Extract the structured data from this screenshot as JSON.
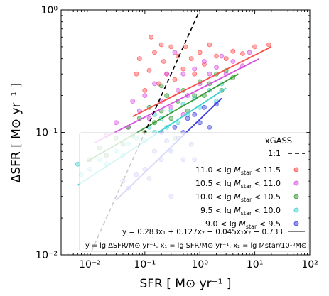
{
  "chart_data": {
    "type": "scatter",
    "xscale": "log",
    "yscale": "log",
    "xlim": [
      0.003,
      100
    ],
    "ylim": [
      0.01,
      1
    ],
    "xlabel": "SFR [ M⊙ yr⁻¹ ]",
    "ylabel": "ΔSFR [ M⊙ yr⁻¹ ]",
    "x_tick_labels": [
      "10⁻²",
      "10⁻¹",
      "10⁰",
      "10¹",
      "10²"
    ],
    "y_tick_labels": [
      "10⁻²",
      "10⁻¹",
      "10⁰"
    ],
    "x_tick_values": [
      0.01,
      0.1,
      1,
      10,
      100
    ],
    "y_tick_values": [
      0.01,
      0.1,
      1
    ],
    "legend": {
      "title": "xGASS",
      "placement": "lower-right",
      "one_to_one_label": "1:1",
      "fit_label": "y = 0.283x₁ + 0.127x₂ − 0.045x₁x₂ − 0.733",
      "note": "y = lg ΔSFR/M⊙ yr⁻¹, x₁ = lg SFR/M⊙ yr⁻¹, x₂ = lg Mstar/10¹⁰M⊙"
    },
    "reference_line": {
      "name": "1:1",
      "color": "#000000",
      "x": [
        0.0095,
        1.02
      ],
      "y": [
        0.0095,
        1.02
      ]
    },
    "series": [
      {
        "name": "11.0 < lg Mstar < 11.5",
        "label_parts": [
          "11.0 < lg",
          "star",
          " < 11.5"
        ],
        "color": "#ff4a4a",
        "fit_x": [
          0.06,
          20
        ],
        "fit_y": [
          0.135,
          0.5
        ],
        "points": [
          [
            0.07,
            0.3
          ],
          [
            0.08,
            0.4
          ],
          [
            0.1,
            0.22
          ],
          [
            0.12,
            0.32
          ],
          [
            0.15,
            0.45
          ],
          [
            0.18,
            0.25
          ],
          [
            0.22,
            0.38
          ],
          [
            0.25,
            0.3
          ],
          [
            0.3,
            0.5
          ],
          [
            0.35,
            0.27
          ],
          [
            0.4,
            0.42
          ],
          [
            0.5,
            0.33
          ],
          [
            0.55,
            0.5
          ],
          [
            0.7,
            0.4
          ],
          [
            0.8,
            0.3
          ],
          [
            1.0,
            0.45
          ],
          [
            1.2,
            0.36
          ],
          [
            1.5,
            0.52
          ],
          [
            2.0,
            0.42
          ],
          [
            3.0,
            0.4
          ],
          [
            4.0,
            0.46
          ],
          [
            6.0,
            0.44
          ],
          [
            10.0,
            0.5
          ],
          [
            18.0,
            0.52
          ],
          [
            0.13,
            0.6
          ],
          [
            0.2,
            0.52
          ]
        ]
      },
      {
        "name": "10.5 < lg Mstar < 11.0",
        "label_parts": [
          "10.5 < lg",
          "star",
          " < 11.0"
        ],
        "color": "#d64fe0",
        "fit_x": [
          0.012,
          12
        ],
        "fit_y": [
          0.082,
          0.4
        ],
        "points": [
          [
            0.02,
            0.095
          ],
          [
            0.03,
            0.12
          ],
          [
            0.05,
            0.11
          ],
          [
            0.06,
            0.18
          ],
          [
            0.08,
            0.15
          ],
          [
            0.1,
            0.2
          ],
          [
            0.12,
            0.13
          ],
          [
            0.15,
            0.25
          ],
          [
            0.2,
            0.18
          ],
          [
            0.25,
            0.3
          ],
          [
            0.3,
            0.16
          ],
          [
            0.4,
            0.22
          ],
          [
            0.5,
            0.3
          ],
          [
            0.6,
            0.2
          ],
          [
            0.8,
            0.33
          ],
          [
            1.0,
            0.25
          ],
          [
            1.2,
            0.38
          ],
          [
            1.5,
            0.3
          ],
          [
            2.0,
            0.34
          ],
          [
            2.5,
            0.42
          ],
          [
            3.0,
            0.3
          ],
          [
            4.0,
            0.38
          ],
          [
            6.0,
            0.35
          ],
          [
            8.0,
            0.45
          ],
          [
            0.35,
            0.45
          ],
          [
            0.5,
            0.14
          ]
        ]
      },
      {
        "name": "10.0 < lg Mstar < 10.5",
        "label_parts": [
          "10.0 < lg",
          "star",
          " < 10.5"
        ],
        "color": "#3a9a3a",
        "fit_x": [
          0.009,
          5
        ],
        "fit_y": [
          0.058,
          0.3
        ],
        "points": [
          [
            0.01,
            0.06
          ],
          [
            0.015,
            0.075
          ],
          [
            0.02,
            0.065
          ],
          [
            0.03,
            0.09
          ],
          [
            0.04,
            0.08
          ],
          [
            0.05,
            0.11
          ],
          [
            0.06,
            0.095
          ],
          [
            0.08,
            0.13
          ],
          [
            0.1,
            0.1
          ],
          [
            0.12,
            0.16
          ],
          [
            0.15,
            0.12
          ],
          [
            0.2,
            0.15
          ],
          [
            0.25,
            0.2
          ],
          [
            0.3,
            0.13
          ],
          [
            0.4,
            0.18
          ],
          [
            0.5,
            0.22
          ],
          [
            0.6,
            0.15
          ],
          [
            0.8,
            0.2
          ],
          [
            1.0,
            0.26
          ],
          [
            1.2,
            0.2
          ],
          [
            1.5,
            0.25
          ],
          [
            2.0,
            0.3
          ],
          [
            2.5,
            0.22
          ],
          [
            3.0,
            0.32
          ],
          [
            4.0,
            0.28
          ],
          [
            0.35,
            0.09
          ],
          [
            0.2,
            0.24
          ]
        ]
      },
      {
        "name": "9.5 < lg Mstar < 10.0",
        "label_parts": [
          "9.5 < lg",
          "star",
          " < 10.0"
        ],
        "color": "#3fd2cf",
        "fit_x": [
          0.006,
          3
        ],
        "fit_y": [
          0.037,
          0.23
        ],
        "points": [
          [
            0.006,
            0.055
          ],
          [
            0.007,
            0.045
          ],
          [
            0.01,
            0.05
          ],
          [
            0.015,
            0.06
          ],
          [
            0.02,
            0.055
          ],
          [
            0.03,
            0.07
          ],
          [
            0.04,
            0.065
          ],
          [
            0.05,
            0.08
          ],
          [
            0.07,
            0.09
          ],
          [
            0.1,
            0.085
          ],
          [
            0.12,
            0.11
          ],
          [
            0.15,
            0.1
          ],
          [
            0.2,
            0.13
          ],
          [
            0.25,
            0.11
          ],
          [
            0.3,
            0.15
          ],
          [
            0.4,
            0.12
          ],
          [
            0.5,
            0.17
          ],
          [
            0.6,
            0.14
          ],
          [
            0.8,
            0.19
          ],
          [
            1.0,
            0.16
          ],
          [
            1.5,
            0.22
          ],
          [
            2.0,
            0.18
          ],
          [
            2.5,
            0.25
          ],
          [
            0.3,
            0.07
          ],
          [
            0.15,
            0.14
          ]
        ]
      },
      {
        "name": "9.0 < lg Mstar < 9.5",
        "label_parts": [
          "9.0 < lg",
          "star",
          " < 9.5"
        ],
        "color": "#3f3fe0",
        "fit_x": [
          0.03,
          2.5
        ],
        "fit_y": [
          0.028,
          0.19
        ],
        "points": [
          [
            0.04,
            0.04
          ],
          [
            0.05,
            0.035
          ],
          [
            0.07,
            0.045
          ],
          [
            0.1,
            0.05
          ],
          [
            0.12,
            0.042
          ],
          [
            0.15,
            0.07
          ],
          [
            0.2,
            0.06
          ],
          [
            0.25,
            0.085
          ],
          [
            0.3,
            0.07
          ],
          [
            0.35,
            0.11
          ],
          [
            0.4,
            0.09
          ],
          [
            0.5,
            0.1
          ],
          [
            0.6,
            0.13
          ],
          [
            0.7,
            0.08
          ],
          [
            0.8,
            0.14
          ],
          [
            1.0,
            0.12
          ],
          [
            1.2,
            0.16
          ],
          [
            1.5,
            0.11
          ],
          [
            2.0,
            0.17
          ],
          [
            0.3,
            0.03
          ],
          [
            0.5,
            0.06
          ],
          [
            0.2,
            0.1
          ],
          [
            0.8,
            0.06
          ]
        ]
      }
    ]
  }
}
